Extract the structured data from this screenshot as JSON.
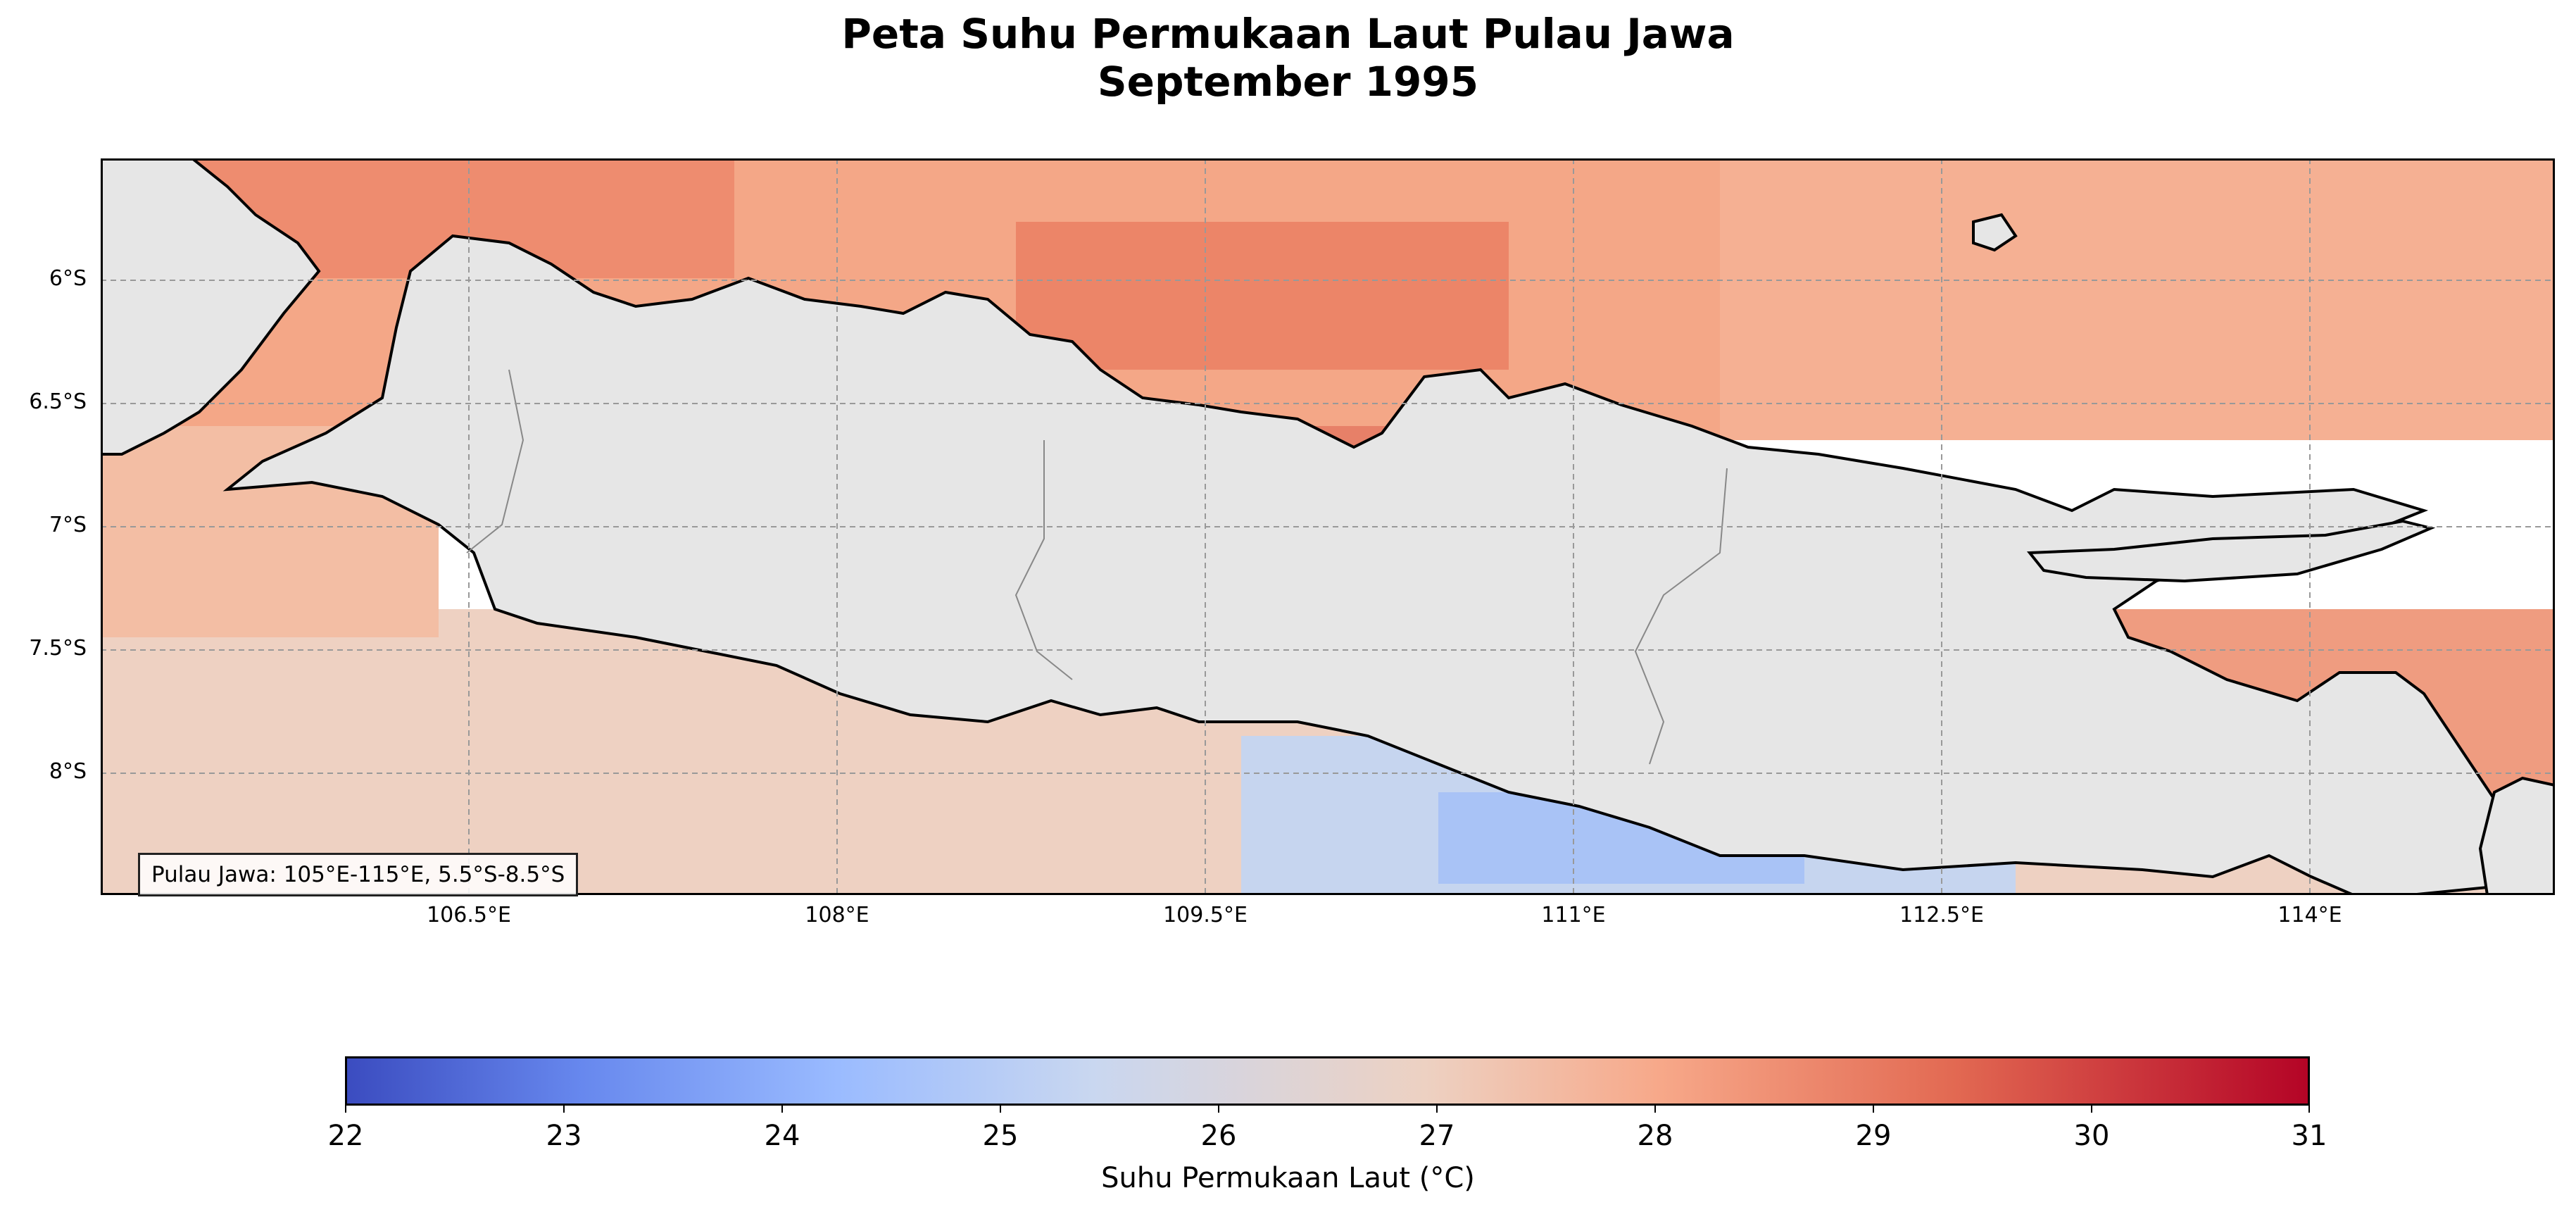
{
  "title": {
    "line1": "Peta Suhu Permukaan Laut Pulau Jawa",
    "line2": "September 1995"
  },
  "map": {
    "lat_ticks": [
      "6°S",
      "6.5°S",
      "7°S",
      "7.5°S",
      "8°S"
    ],
    "lon_ticks": [
      "106.5°E",
      "108°E",
      "109.5°E",
      "111°E",
      "112.5°E",
      "114°E"
    ],
    "info_box": "Pulau Jawa: 105°E-115°E, 5.5°S-8.5°S",
    "lon_range": [
      105,
      115
    ],
    "lat_range": [
      -5.5,
      -8.5
    ],
    "land_color": "#e6e6e6",
    "nodata_sea_color": "#d4eaf1"
  },
  "colorbar": {
    "colormap": "coolwarm",
    "ticks": [
      "22",
      "23",
      "24",
      "25",
      "26",
      "27",
      "28",
      "29",
      "30",
      "31"
    ],
    "label": "Suhu Permukaan Laut (°C)",
    "vmin": 22,
    "vmax": 31
  }
}
